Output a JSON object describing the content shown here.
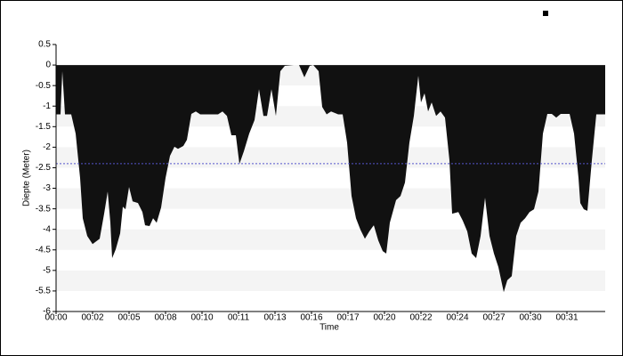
{
  "chart_data": {
    "type": "area",
    "ylabel": "Diepte (Meter)",
    "xlabel": "Time",
    "color": "#111111",
    "reference_line": -2.4,
    "reference_color": "#5555cc",
    "ylim": [
      -6,
      0.5
    ],
    "yticks": [
      0.5,
      0,
      -0.5,
      -1,
      -1.5,
      -2,
      -2.5,
      -3,
      -3.5,
      -4,
      -4.5,
      -5,
      -5.5,
      -6
    ],
    "xlim": [
      0,
      617
    ],
    "xticks": [
      {
        "value": 0,
        "label": "00:00"
      },
      {
        "value": 41,
        "label": "00:02"
      },
      {
        "value": 82,
        "label": "00:05"
      },
      {
        "value": 123,
        "label": "00:08"
      },
      {
        "value": 164,
        "label": "00:10"
      },
      {
        "value": 205,
        "label": "00:11"
      },
      {
        "value": 246,
        "label": "00:13"
      },
      {
        "value": 287,
        "label": "00:16"
      },
      {
        "value": 328,
        "label": "00:17"
      },
      {
        "value": 369,
        "label": "00:20"
      },
      {
        "value": 410,
        "label": "00:22"
      },
      {
        "value": 451,
        "label": "00:24"
      },
      {
        "value": 492,
        "label": "00:27"
      },
      {
        "value": 533,
        "label": "00:30"
      },
      {
        "value": 574,
        "label": "00:31"
      }
    ],
    "x": [
      0,
      5,
      7,
      10,
      17,
      22,
      27,
      30,
      35,
      41,
      49,
      54,
      58,
      61,
      63,
      67,
      72,
      75,
      78,
      82,
      86,
      92,
      97,
      100,
      105,
      109,
      113,
      118,
      123,
      128,
      133,
      137,
      143,
      147,
      152,
      157,
      162,
      182,
      187,
      192,
      197,
      202,
      206,
      211,
      217,
      223,
      228,
      233,
      237,
      242,
      247,
      252,
      257,
      267,
      273,
      279,
      285,
      289,
      295,
      299,
      304,
      309,
      317,
      322,
      327,
      332,
      337,
      342,
      347,
      352,
      357,
      362,
      367,
      371,
      375,
      382,
      387,
      392,
      397,
      402,
      407,
      410,
      414,
      418,
      422,
      427,
      432,
      437,
      442,
      445,
      452,
      457,
      462,
      467,
      472,
      477,
      482,
      487,
      492,
      497,
      503,
      507,
      512,
      517,
      522,
      527,
      532,
      537,
      542,
      547,
      552,
      557,
      562,
      567,
      577,
      582,
      587,
      589,
      593,
      597,
      602,
      607,
      617
    ],
    "values": [
      -1.2,
      -1.2,
      -0.15,
      -1.2,
      -1.2,
      -1.67,
      -2.75,
      -3.73,
      -4.16,
      -4.36,
      -4.23,
      -3.62,
      -3.08,
      -3.84,
      -4.7,
      -4.49,
      -4.1,
      -3.45,
      -3.51,
      -2.97,
      -3.32,
      -3.36,
      -3.58,
      -3.9,
      -3.92,
      -3.73,
      -3.84,
      -3.47,
      -2.75,
      -2.21,
      -1.99,
      -2.04,
      -1.97,
      -1.82,
      -1.19,
      -1.13,
      -1.2,
      -1.2,
      -1.13,
      -1.24,
      -1.71,
      -1.71,
      -2.41,
      -2.1,
      -1.67,
      -1.34,
      -0.59,
      -1.24,
      -1.24,
      -0.59,
      -1.24,
      -0.15,
      -0.02,
      0,
      0,
      -0.3,
      -0.02,
      0,
      -0.15,
      -1.02,
      -1.2,
      -1.13,
      -1.2,
      -1.2,
      -1.89,
      -3.19,
      -3.73,
      -4.01,
      -4.23,
      -4.05,
      -3.9,
      -4.27,
      -4.53,
      -4.59,
      -3.84,
      -3.29,
      -3.19,
      -2.86,
      -1.89,
      -1.24,
      -0.26,
      -0.91,
      -0.69,
      -1.13,
      -0.91,
      -1.24,
      -1.13,
      -1.28,
      -2.32,
      -3.62,
      -3.58,
      -3.79,
      -4.05,
      -4.59,
      -4.7,
      -4.16,
      -3.23,
      -4.16,
      -4.59,
      -4.92,
      -5.53,
      -5.24,
      -5.14,
      -4.16,
      -3.84,
      -3.73,
      -3.58,
      -3.51,
      -3.08,
      -1.67,
      -1.19,
      -1.19,
      -1.28,
      -1.19,
      -1.19,
      -1.67,
      -2.75,
      -3.36,
      -3.51,
      -3.55,
      -2.32,
      -1.2,
      -1.2
    ]
  }
}
